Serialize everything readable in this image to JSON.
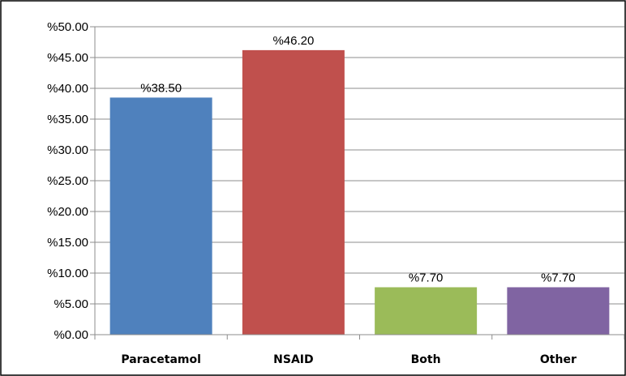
{
  "chart_data": {
    "type": "bar",
    "categories": [
      "Paracetamol",
      "NSAID",
      "Both",
      "Other"
    ],
    "values": [
      38.5,
      46.2,
      7.7,
      7.7
    ],
    "data_labels": [
      "%38.50",
      "%46.20",
      "%7.70",
      "%7.70"
    ],
    "colors": [
      "#4f81bd",
      "#c0504d",
      "#9bbb59",
      "#8064a2"
    ],
    "ylim": [
      0,
      50
    ],
    "yticks": [
      0,
      5,
      10,
      15,
      20,
      25,
      30,
      35,
      40,
      45,
      50
    ],
    "ytick_labels": [
      "%0.00",
      "%5.00",
      "%10.00",
      "%15.00",
      "%20.00",
      "%25.00",
      "%30.00",
      "%35.00",
      "%40.00",
      "%45.00",
      "%50.00"
    ],
    "grid": true,
    "legend": "none",
    "title": "",
    "xlabel": "",
    "ylabel": ""
  }
}
